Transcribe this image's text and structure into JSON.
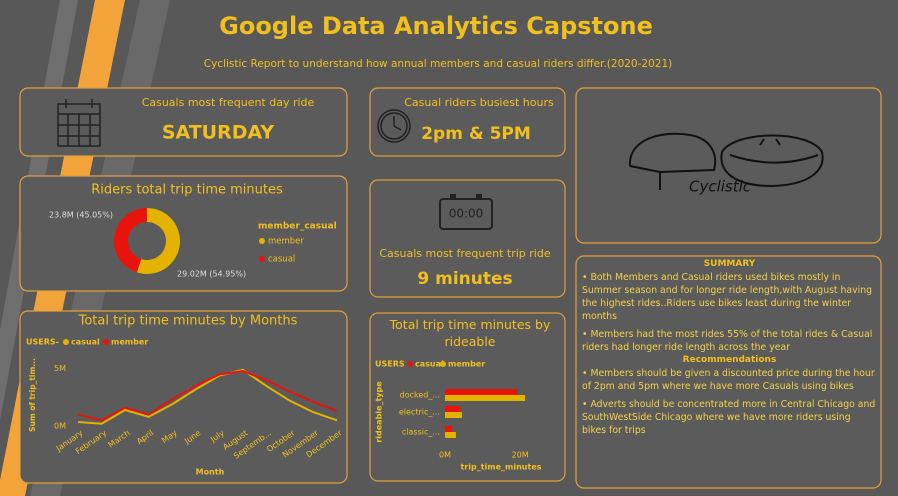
{
  "header": {
    "title": "Google Data Analytics Capstone",
    "subtitle": "Cyclistic Report to understand how annual members and casual riders differ.(2020-2021)"
  },
  "cards": {
    "day": {
      "label": "Casuals most frequent day ride",
      "value": "SATURDAY"
    },
    "hours": {
      "label": "Casual riders busiest hours",
      "value": "2pm & 5PM"
    },
    "trip": {
      "display": "00:00",
      "label": "Casuals most frequent trip ride",
      "value": "9 minutes"
    },
    "logo": {
      "text": "Cyclistic"
    }
  },
  "summary": {
    "heading": "SUMMARY",
    "paragraphs": [
      "• Both Members and Casual riders used bikes mostly in Summer season and for longer ride length,with August having the highest rides..Riders use bikes least during the winter months",
      "• Members had the most rides 55% of the total rides & Casual riders had longer ride length across the year"
    ],
    "recommendations_heading": "Recommendations",
    "recommendations": [
      "• Members should be given a discounted price during the hour of 2pm and 5pm where we have more Casuals using bikes",
      "• Adverts should be concentrated more in Central Chicago and SouthWestSide Chicago where we have more riders using bikes for trips"
    ]
  },
  "chart_data": [
    {
      "type": "pie",
      "title": "Riders total trip time minutes",
      "legend_title": "member_casual",
      "categories": [
        "member",
        "casual"
      ],
      "values": [
        29020000,
        23800000
      ],
      "value_labels": [
        "29.02M (54.95%)",
        "23.8M (45.05%)"
      ],
      "colors": [
        "#e3b300",
        "#e8140c"
      ]
    },
    {
      "type": "line",
      "title": "Total trip time minutes by Months",
      "legend_title": "USERS-",
      "y_label": "Sum of trip_tim...",
      "x_label": "Month",
      "categories": [
        "January",
        "February",
        "March",
        "April",
        "May",
        "June",
        "July",
        "August",
        "Septemb...",
        "October",
        "November",
        "December"
      ],
      "series": [
        {
          "name": "casual",
          "color": "#e3b300",
          "values": [
            350000,
            200000,
            1400000,
            800000,
            1900000,
            3200000,
            4400000,
            4900000,
            3500000,
            2200000,
            1200000,
            500000
          ]
        },
        {
          "name": "member",
          "color": "#e8140c",
          "values": [
            1000000,
            500000,
            1600000,
            1000000,
            2300000,
            3500000,
            4500000,
            4800000,
            4000000,
            3000000,
            2100000,
            1300000
          ]
        }
      ],
      "ylim": [
        0,
        6200000
      ],
      "yticks": [
        {
          "value": 0,
          "label": "0M"
        },
        {
          "value": 5000000,
          "label": "5M"
        }
      ]
    },
    {
      "type": "bar",
      "title": "Total trip time minutes by rideable",
      "legend_title": "USERS",
      "y_label": "rideable_type",
      "x_label": "trip_time_minutes",
      "categories": [
        "docked_...",
        "electric_...",
        "classic_..."
      ],
      "series": [
        {
          "name": "casual",
          "color": "#e8140c",
          "values": [
            19200000,
            4000000,
            1900000
          ]
        },
        {
          "name": "member",
          "color": "#e3b300",
          "values": [
            21300000,
            4500000,
            2900000
          ]
        }
      ],
      "xlim": [
        0,
        25000000
      ],
      "xticks": [
        {
          "value": 0,
          "label": "0M"
        },
        {
          "value": 20000000,
          "label": "20M"
        }
      ]
    }
  ]
}
